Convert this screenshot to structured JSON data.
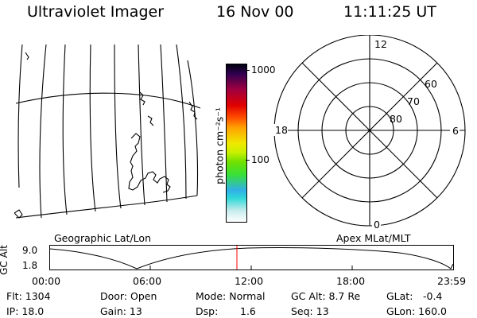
{
  "header": {
    "instrument": "Ultraviolet Imager",
    "date": "16 Nov 00",
    "time": "11:11:25 UT"
  },
  "colorbar": {
    "unit_label": "photon cm⁻²s⁻¹",
    "ticks": [
      "1000",
      "100"
    ]
  },
  "polar_plot": {
    "mlt_labels": {
      "top": "12",
      "right": "6",
      "bottom": "0",
      "left": "18"
    },
    "lat_labels": [
      "60",
      "70",
      "80"
    ]
  },
  "map_panel": {
    "caption": "Geographic Lat/Lon"
  },
  "polar_panel": {
    "caption": "Apex MLat/MLT"
  },
  "altitude_plot": {
    "ylabel": "GC Alt",
    "y_ticks": [
      "9.0",
      "1.8"
    ],
    "x_ticks": [
      "00:00",
      "06:00",
      "12:00",
      "18:00",
      "23:59"
    ],
    "marker_color": "#ff0000"
  },
  "info": {
    "flt": "Flt: 1304",
    "ip": "IP: 18.0",
    "door": "Door: Open",
    "gain": "Gain: 13",
    "mode": "Mode: Normal",
    "dsp_label": "Dsp:",
    "dsp_value": "1.6",
    "gc_alt": "GC Alt: 8.7 Re",
    "seq": "Seq: 13",
    "glat_label": "GLat:",
    "glat_value": "-0.4",
    "glon": "GLon: 160.0"
  }
}
